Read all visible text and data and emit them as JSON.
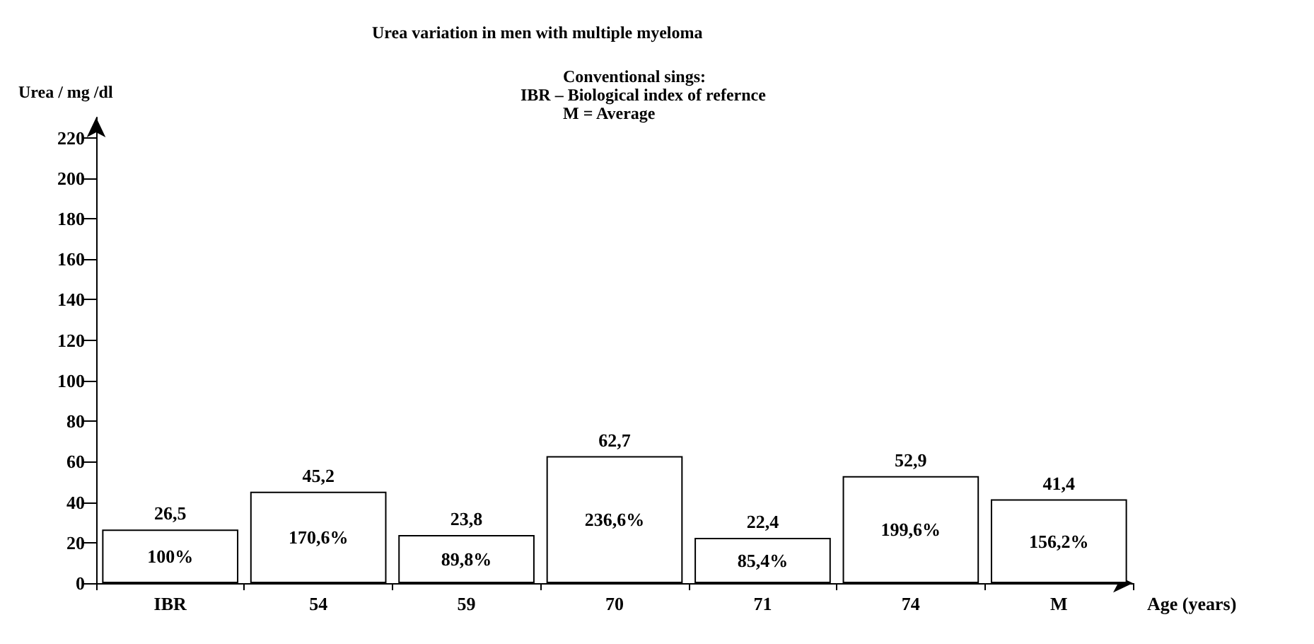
{
  "chart_data": {
    "type": "bar",
    "title": "Urea variation in men with multiple myeloma",
    "ylabel": "Urea / mg /dl",
    "xlabel": "Age (years)",
    "categories": [
      "IBR",
      "54",
      "59",
      "70",
      "71",
      "74",
      "M"
    ],
    "series": [
      {
        "color": "#ffffff",
        "values": [
          26.5,
          45.2,
          23.8,
          62.7,
          22.4,
          52.9,
          41.4
        ],
        "value_labels": [
          "26,5",
          "45,2",
          "23,8",
          "62,7",
          "22,4",
          "52,9",
          "41,4"
        ]
      }
    ],
    "ylim": [
      0,
      230
    ],
    "yticks": [
      0,
      20,
      40,
      60,
      80,
      100,
      120,
      140,
      160,
      180,
      200,
      220
    ],
    "grid": false,
    "annotations": [
      "Conventional sings:",
      "IBR – Biological index of refernce",
      "M = Average",
      "100%",
      "170,6%",
      "89,8%",
      "236,6%",
      "85,4%",
      "199,6%",
      "156,2%"
    ]
  }
}
